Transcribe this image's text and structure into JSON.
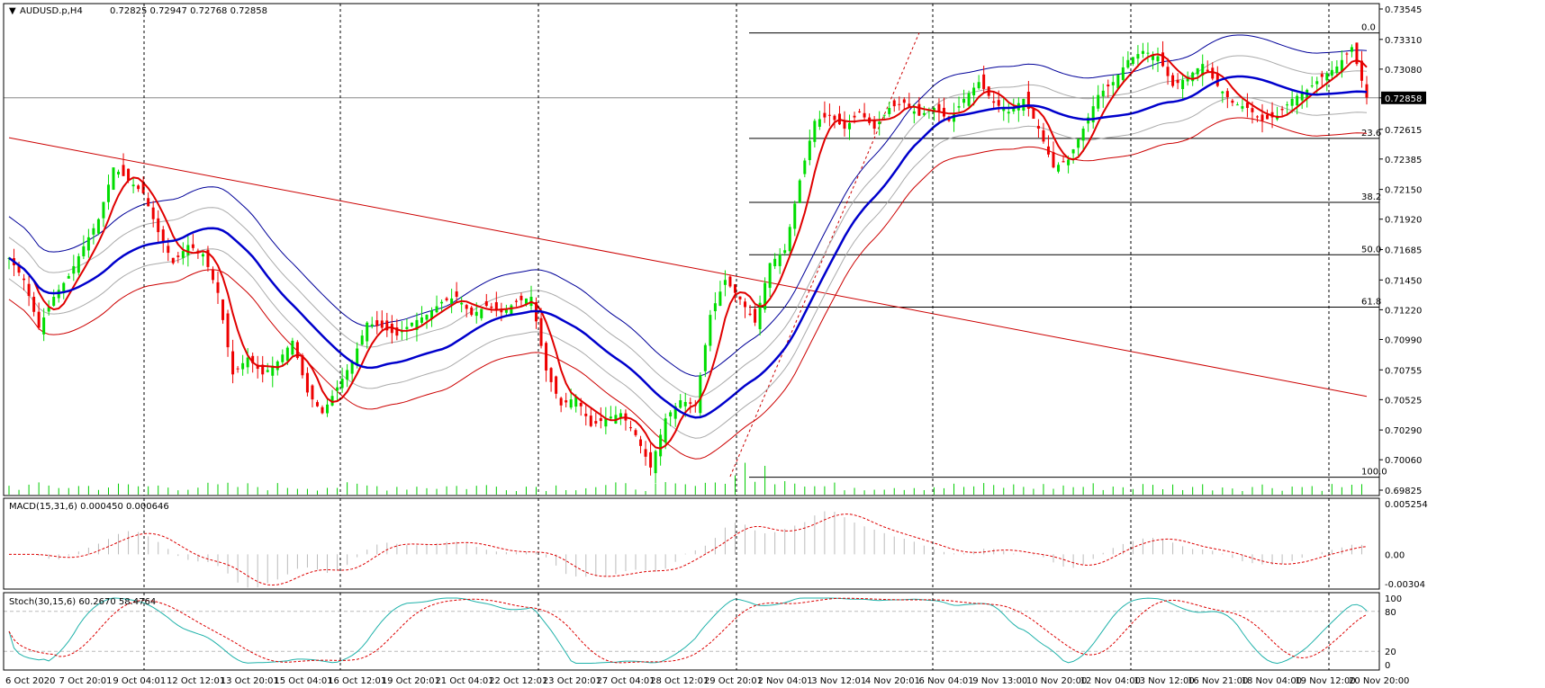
{
  "header": {
    "symbol": "AUDUSD.p,H4",
    "ohlc": "0.72825 0.72947 0.72768 0.72858"
  },
  "panels": {
    "macd_title": "MACD(15,31,6) 0.000450 0.000646",
    "stoch_title": "Stoch(30,15,6) 60.2670 58.4764"
  },
  "colors": {
    "bull": "#00dd00",
    "bear": "#ee0000",
    "ma_fast": "#e00000",
    "ma_mid": "#0000cc",
    "env_outer_upper": "#000099",
    "env_outer_lower": "#cc0000",
    "env_inner": "#aaaaaa",
    "trendline": "#cc0000",
    "fib": "#000000",
    "volume": "#00cc00",
    "macd_hist": "#bbbbbb",
    "macd_signal": "#dd0000",
    "stoch_main": "#20b2aa",
    "stoch_signal": "#dd0000",
    "grid_v": "#000000",
    "current_price_line": "#888888"
  },
  "chart_data": [
    {
      "type": "candlestick",
      "name": "AUDUSD.p,H4",
      "y_ticks": [
        "0.73545",
        "0.73310",
        "0.73080",
        "0.72858",
        "0.72615",
        "0.72385",
        "0.72150",
        "0.71920",
        "0.71685",
        "0.71450",
        "0.71220",
        "0.70990",
        "0.70755",
        "0.70525",
        "0.70290",
        "0.70060",
        "0.69825"
      ],
      "ylim": [
        0.69825,
        0.73545
      ],
      "current_price": "0.72858",
      "x_labels": [
        "6 Oct 2020",
        "7 Oct 20:01",
        "9 Oct 04:01",
        "12 Oct 12:01",
        "13 Oct 20:01",
        "15 Oct 04:01",
        "16 Oct 12:01",
        "19 Oct 20:01",
        "21 Oct 04:01",
        "22 Oct 12:01",
        "23 Oct 20:01",
        "27 Oct 04:01",
        "28 Oct 12:01",
        "29 Oct 20:01",
        "2 Nov 04:01",
        "3 Nov 12:01",
        "4 Nov 20:01",
        "6 Nov 04:01",
        "9 Nov 13:00",
        "10 Nov 20:00",
        "12 Nov 04:00",
        "13 Nov 12:00",
        "16 Nov 21:00",
        "18 Nov 04:00",
        "19 Nov 12:00",
        "20 Nov 20:00"
      ],
      "fib_levels": [
        {
          "label": "0.0",
          "price": 0.7336
        },
        {
          "label": "23.6",
          "price": 0.72545
        },
        {
          "label": "38.2",
          "price": 0.7205
        },
        {
          "label": "50.0",
          "price": 0.71645
        },
        {
          "label": "61.8",
          "price": 0.7124
        },
        {
          "label": "100.0",
          "price": 0.69925
        }
      ],
      "close_path": [
        [
          0,
          0.7162
        ],
        [
          3,
          0.7145
        ],
        [
          6,
          0.7108
        ],
        [
          9,
          0.7132
        ],
        [
          12,
          0.7148
        ],
        [
          15,
          0.7171
        ],
        [
          18,
          0.7192
        ],
        [
          21,
          0.7232
        ],
        [
          24,
          0.7222
        ],
        [
          27,
          0.7212
        ],
        [
          30,
          0.7182
        ],
        [
          33,
          0.7158
        ],
        [
          36,
          0.7172
        ],
        [
          39,
          0.7165
        ],
        [
          42,
          0.7135
        ],
        [
          45,
          0.7072
        ],
        [
          48,
          0.7085
        ],
        [
          51,
          0.7072
        ],
        [
          54,
          0.7082
        ],
        [
          57,
          0.7098
        ],
        [
          60,
          0.7058
        ],
        [
          63,
          0.7042
        ],
        [
          66,
          0.7062
        ],
        [
          69,
          0.7082
        ],
        [
          72,
          0.7112
        ],
        [
          75,
          0.7108
        ],
        [
          78,
          0.7102
        ],
        [
          81,
          0.7112
        ],
        [
          84,
          0.7118
        ],
        [
          87,
          0.7128
        ],
        [
          90,
          0.7132
        ],
        [
          93,
          0.7118
        ],
        [
          96,
          0.7125
        ],
        [
          99,
          0.712
        ],
        [
          102,
          0.7128
        ],
        [
          105,
          0.7132
        ],
        [
          108,
          0.7075
        ],
        [
          111,
          0.7048
        ],
        [
          114,
          0.7055
        ],
        [
          117,
          0.7032
        ],
        [
          120,
          0.7038
        ],
        [
          123,
          0.7042
        ],
        [
          126,
          0.7025
        ],
        [
          129,
          0.7
        ],
        [
          132,
          0.7038
        ],
        [
          135,
          0.7052
        ],
        [
          138,
          0.7048
        ],
        [
          141,
          0.7118
        ],
        [
          144,
          0.7145
        ],
        [
          147,
          0.713
        ],
        [
          150,
          0.7112
        ],
        [
          153,
          0.7158
        ],
        [
          156,
          0.7168
        ],
        [
          159,
          0.7222
        ],
        [
          162,
          0.7268
        ],
        [
          165,
          0.7272
        ],
        [
          168,
          0.7262
        ],
        [
          171,
          0.7275
        ],
        [
          174,
          0.7262
        ],
        [
          177,
          0.7278
        ],
        [
          180,
          0.7282
        ],
        [
          183,
          0.7272
        ],
        [
          186,
          0.7278
        ],
        [
          189,
          0.7268
        ],
        [
          192,
          0.7285
        ],
        [
          195,
          0.7298
        ],
        [
          198,
          0.7282
        ],
        [
          201,
          0.7275
        ],
        [
          204,
          0.7285
        ],
        [
          207,
          0.7262
        ],
        [
          210,
          0.7232
        ],
        [
          213,
          0.7238
        ],
        [
          216,
          0.7262
        ],
        [
          219,
          0.7288
        ],
        [
          222,
          0.7298
        ],
        [
          225,
          0.7315
        ],
        [
          228,
          0.7322
        ],
        [
          231,
          0.7318
        ],
        [
          234,
          0.7295
        ],
        [
          237,
          0.7302
        ],
        [
          240,
          0.7312
        ],
        [
          243,
          0.7295
        ],
        [
          246,
          0.7282
        ],
        [
          249,
          0.7278
        ],
        [
          252,
          0.7268
        ],
        [
          255,
          0.7272
        ],
        [
          258,
          0.7285
        ],
        [
          261,
          0.7292
        ],
        [
          264,
          0.7302
        ],
        [
          267,
          0.731
        ],
        [
          270,
          0.7325
        ],
        [
          273,
          0.7286
        ]
      ],
      "trendline": [
        [
          0.7255,
          0
        ],
        [
          0.7055,
          273
        ]
      ],
      "ma_fast_path": "smooth(close,6)",
      "ma_mid_path": "smooth(close,30)"
    },
    {
      "type": "histogram",
      "name": "MACD(15,31,6)",
      "y_ticks": [
        "0.005254",
        "0.00",
        "-0.00304"
      ],
      "ylim": [
        -0.00304,
        0.005254
      ],
      "values_text": "0.000450 0.000646"
    },
    {
      "type": "line",
      "name": "Stoch(30,15,6)",
      "y_ticks": [
        "100",
        "80",
        "20",
        "0"
      ],
      "ylim": [
        0,
        100
      ],
      "values_text": "60.2670 58.4764"
    }
  ]
}
